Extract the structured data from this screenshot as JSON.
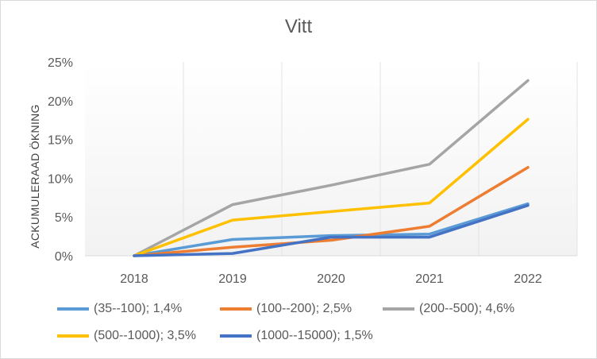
{
  "chart_data": {
    "type": "line",
    "title": "Vitt",
    "ylabel": "ACKUMULERAAD ÖKNING",
    "xlabel": "",
    "x": [
      "2018",
      "2019",
      "2020",
      "2021",
      "2022"
    ],
    "ylim": [
      0,
      25
    ],
    "yticks": [
      "0%",
      "5%",
      "10%",
      "15%",
      "20%",
      "25%"
    ],
    "grid": "vertical",
    "legend": "bottom",
    "series": [
      {
        "name": "(35--100); 1,4%",
        "color": "#5b9bd5",
        "values": [
          0,
          2.1,
          2.6,
          2.8,
          6.7
        ]
      },
      {
        "name": "(100--200); 2,5%",
        "color": "#ed7d31",
        "values": [
          0,
          1.1,
          2.0,
          3.8,
          11.4
        ]
      },
      {
        "name": "(200--500); 4,6%",
        "color": "#a5a5a5",
        "values": [
          0,
          6.6,
          9.1,
          11.8,
          22.6
        ]
      },
      {
        "name": "(500--1000); 3,5%",
        "color": "#ffc000",
        "values": [
          0,
          4.6,
          5.7,
          6.8,
          17.6
        ]
      },
      {
        "name": "(1000--15000); 1,5%",
        "color": "#4472c4",
        "values": [
          0,
          0.3,
          2.4,
          2.4,
          6.5
        ]
      }
    ]
  }
}
